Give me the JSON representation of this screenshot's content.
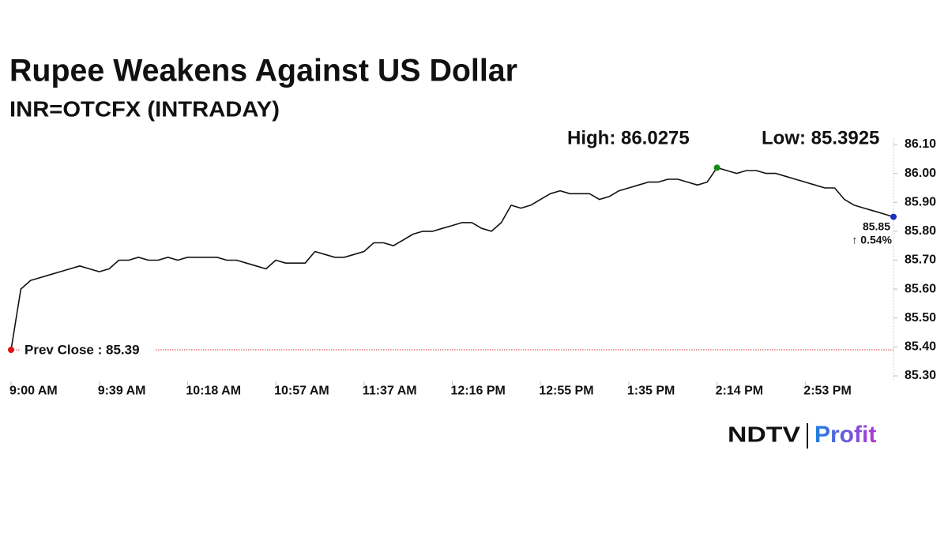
{
  "chart_data": {
    "type": "line",
    "title": "Rupee Weakens Against US Dollar",
    "subtitle": "INR=OTCFX (INTRADAY)",
    "annotations": {
      "high": "High: 86.0275",
      "low": "Low: 85.3925",
      "prev_close_label": "Prev Close : 85.39",
      "last_label": "85.85",
      "change_label": "↑ 0.54%"
    },
    "prev_close": 85.39,
    "categories": [
      "9:00 AM",
      null,
      null,
      null,
      null,
      null,
      null,
      null,
      null,
      "9:39 AM",
      null,
      null,
      null,
      null,
      null,
      null,
      null,
      null,
      "10:18 AM",
      null,
      null,
      null,
      null,
      null,
      null,
      null,
      null,
      "10:57 AM",
      null,
      null,
      null,
      null,
      null,
      null,
      null,
      null,
      "11:37 AM",
      null,
      null,
      null,
      null,
      null,
      null,
      null,
      null,
      "12:16 PM",
      null,
      null,
      null,
      null,
      null,
      null,
      null,
      null,
      "12:55 PM",
      null,
      null,
      null,
      null,
      null,
      null,
      null,
      null,
      "1:35 PM",
      null,
      null,
      null,
      null,
      null,
      null,
      null,
      null,
      "2:14 PM",
      null,
      null,
      null,
      null,
      null,
      null,
      null,
      null,
      "2:53 PM",
      null,
      null,
      null,
      null,
      null,
      null,
      null,
      null,
      null
    ],
    "series": [
      {
        "name": "INR=OTCFX",
        "color": "#111111",
        "values": [
          85.39,
          85.6,
          85.63,
          85.64,
          85.65,
          85.66,
          85.67,
          85.68,
          85.67,
          85.66,
          85.67,
          85.7,
          85.7,
          85.71,
          85.7,
          85.7,
          85.71,
          85.7,
          85.71,
          85.71,
          85.71,
          85.71,
          85.7,
          85.7,
          85.69,
          85.68,
          85.67,
          85.7,
          85.69,
          85.69,
          85.69,
          85.73,
          85.72,
          85.71,
          85.71,
          85.72,
          85.73,
          85.76,
          85.76,
          85.75,
          85.77,
          85.79,
          85.8,
          85.8,
          85.81,
          85.82,
          85.83,
          85.83,
          85.81,
          85.8,
          85.83,
          85.89,
          85.88,
          85.89,
          85.91,
          85.93,
          85.94,
          85.93,
          85.93,
          85.93,
          85.91,
          85.92,
          85.94,
          85.95,
          85.96,
          85.97,
          85.97,
          85.98,
          85.98,
          85.97,
          85.96,
          85.97,
          86.02,
          86.01,
          86.0,
          86.01,
          86.01,
          86.0,
          86.0,
          85.99,
          85.98,
          85.97,
          85.96,
          85.95,
          85.95,
          85.91,
          85.89,
          85.88,
          85.87,
          85.86,
          85.85
        ]
      }
    ],
    "ylim": [
      85.28,
      86.12
    ],
    "yticks": [
      {
        "value": 85.3,
        "label": "85.30"
      },
      {
        "value": 85.4,
        "label": "85.40"
      },
      {
        "value": 85.5,
        "label": "85.50"
      },
      {
        "value": 85.6,
        "label": "85.60"
      },
      {
        "value": 85.7,
        "label": "85.70"
      },
      {
        "value": 85.8,
        "label": "85.80"
      },
      {
        "value": 85.9,
        "label": "85.90"
      },
      {
        "value": 86,
        "label": "86.00"
      },
      {
        "value": 86.1,
        "label": "86.10"
      }
    ],
    "y_axis_side": "right",
    "grid": false,
    "marker_colors": {
      "start": "#e01010",
      "high": "#138a13",
      "end": "#1a2fc0"
    },
    "prev_close_color": "#e03030",
    "change_color": "#138a13",
    "logo": {
      "left": "NDTV",
      "right": "Profit"
    }
  }
}
